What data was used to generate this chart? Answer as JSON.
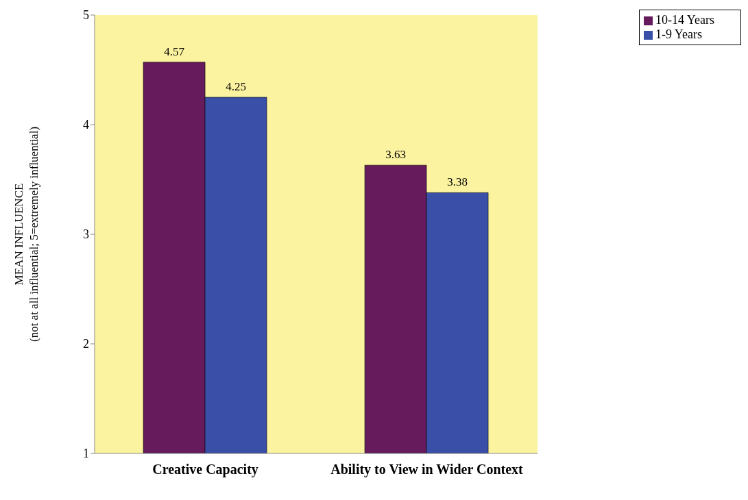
{
  "chart_data": {
    "type": "bar",
    "categories": [
      "Creative Capacity",
      "Ability to View in Wider Context"
    ],
    "series": [
      {
        "name": "10-14 Years",
        "color": "#661c5c",
        "values": [
          4.57,
          3.63
        ]
      },
      {
        "name": "1-9 Years",
        "color": "#3a50a8",
        "values": [
          4.25,
          3.38
        ]
      }
    ],
    "ylabel": "MEAN INFLUENCE\n(not at all influential; 5=extremely influential)",
    "ylim": [
      1,
      5
    ],
    "yticks": [
      1,
      2,
      3,
      4,
      5
    ],
    "data_labels": true,
    "legend": "top right"
  }
}
